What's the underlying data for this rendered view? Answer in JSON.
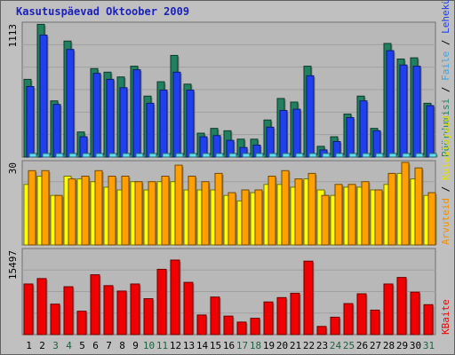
{
  "chart_data": {
    "type": "bar",
    "title": "Kasutuspäevad Oktoober 2009",
    "categories": [
      "1",
      "2",
      "3",
      "4",
      "5",
      "6",
      "7",
      "8",
      "9",
      "10",
      "11",
      "12",
      "13",
      "14",
      "15",
      "16",
      "17",
      "18",
      "19",
      "20",
      "21",
      "22",
      "23",
      "24",
      "25",
      "26",
      "27",
      "28",
      "29",
      "30",
      "31"
    ],
    "weekend_days": [
      "3",
      "4",
      "10",
      "11",
      "17",
      "18",
      "24",
      "25",
      "31"
    ],
    "panels": [
      {
        "id": "pages",
        "axis_max_label": "1113",
        "ylim": [
          0,
          1113
        ],
        "grid": true,
        "series": [
          {
            "name": "Külastajaid",
            "color": "#208060",
            "values": [
              650,
              1110,
              470,
              970,
              210,
              740,
              710,
              670,
              760,
              510,
              630,
              850,
              610,
              200,
              240,
              220,
              150,
              150,
              310,
              490,
              460,
              760,
              90,
              170,
              360,
              510,
              240,
              950,
              820,
              830,
              450
            ]
          },
          {
            "name": "Lehekülgi",
            "color": "#2040f0",
            "values": [
              590,
              1020,
              440,
              900,
              170,
              700,
              650,
              580,
              730,
              450,
              560,
              710,
              560,
              170,
              180,
              140,
              80,
              100,
              250,
              390,
              400,
              680,
              60,
              130,
              330,
              470,
              220,
              890,
              770,
              760,
              430
            ]
          },
          {
            "name": "Faile",
            "color": "#60e0f0",
            "values": [
              30,
              30,
              30,
              30,
              30,
              30,
              30,
              30,
              30,
              30,
              30,
              30,
              30,
              30,
              30,
              30,
              30,
              30,
              30,
              30,
              30,
              30,
              30,
              30,
              30,
              30,
              30,
              30,
              30,
              30,
              30
            ]
          }
        ],
        "side_labels": [
          {
            "text": "Pöördumisi",
            "color": "#208060"
          },
          {
            "text": " / ",
            "color": "#000000"
          },
          {
            "text": "Faile",
            "color": "#40a0e0"
          },
          {
            "text": " / ",
            "color": "#000000"
          },
          {
            "text": "Lehekülgi",
            "color": "#2040f0"
          },
          {
            "text": " / ",
            "color": "#000000"
          },
          {
            "text": "Külastajaid",
            "color": "#e0e000"
          }
        ]
      },
      {
        "id": "visits",
        "axis_max_label": "30",
        "ylim": [
          0,
          30
        ],
        "grid": true,
        "series": [
          {
            "name": "Külastajaid",
            "color": "#ffff00",
            "values": [
              22,
              25,
              18,
              25,
              24,
              23,
              21,
              20,
              23,
              20,
              23,
              23,
              20,
              20,
              20,
              18,
              16,
              19,
              22,
              22,
              21,
              24,
              20,
              18,
              21,
              21,
              20,
              22,
              26,
              24,
              18
            ]
          },
          {
            "name": "Arvuteid",
            "color": "#ffa000",
            "values": [
              27,
              27,
              18,
              24,
              25,
              27,
              25,
              25,
              23,
              23,
              25,
              29,
              25,
              23,
              26,
              19,
              20,
              20,
              25,
              27,
              24,
              26,
              18,
              22,
              22,
              23,
              20,
              26,
              30,
              28,
              19
            ]
          }
        ],
        "side_labels": [
          {
            "text": "Arvuteid",
            "color": "#f09000"
          },
          {
            "text": " / ",
            "color": "#000000"
          },
          {
            "text": "Külastajaid",
            "color": "#e0e000"
          }
        ]
      },
      {
        "id": "kbytes",
        "axis_max_label": "15497",
        "ylim": [
          0,
          15497
        ],
        "grid": true,
        "series": [
          {
            "name": "KBaite",
            "color": "#f00000",
            "values": [
              9300,
              10300,
              5600,
              8800,
              4300,
              11000,
              9000,
              8000,
              9300,
              6600,
              12000,
              13700,
              9600,
              3600,
              6900,
              3400,
              2300,
              3000,
              6000,
              6800,
              7600,
              13500,
              1500,
              3200,
              5700,
              7500,
              4500,
              9300,
              10500,
              7800,
              5500
            ]
          }
        ],
        "side_labels": [
          {
            "text": "KBaite",
            "color": "#f00000"
          }
        ]
      }
    ],
    "colors": {
      "background": "#c0c0c0",
      "plot_background": "#b8b8b8",
      "grid": "#a0a0a0",
      "weekday_label": "#000000",
      "weekend_label": "#206040",
      "title": "#1c21b8"
    }
  }
}
